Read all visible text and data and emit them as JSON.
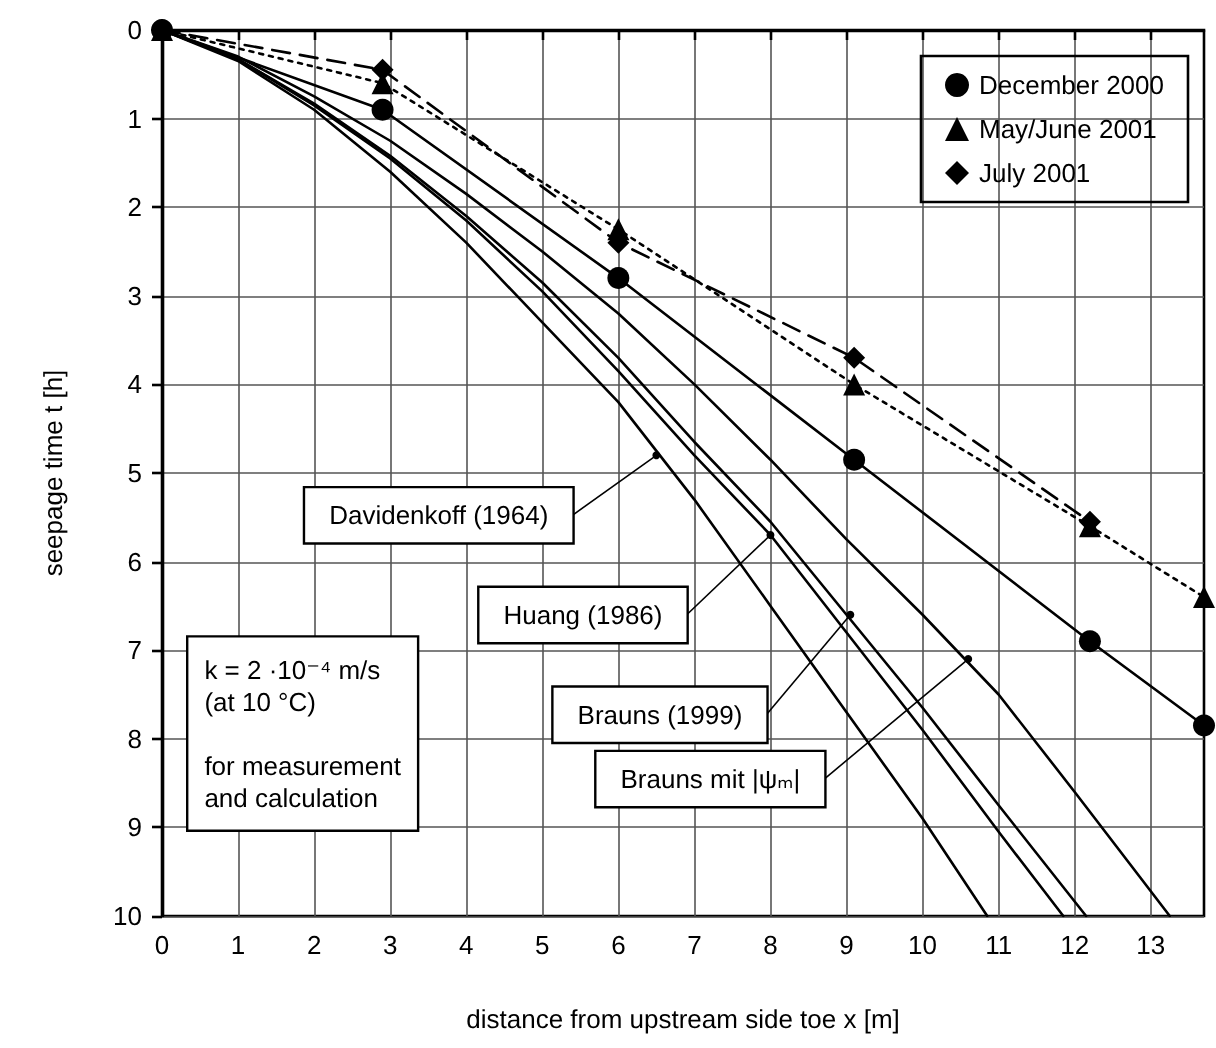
{
  "chart_data": {
    "type": "line",
    "xlabel": "distance from upstream side toe x [m]",
    "ylabel": "seepage time t [h]",
    "xlim": [
      0,
      13.7
    ],
    "ylim": [
      10,
      0
    ],
    "xticks": [
      0,
      1,
      2,
      3,
      4,
      5,
      6,
      7,
      8,
      9,
      10,
      11,
      12,
      13
    ],
    "yticks": [
      0,
      1,
      2,
      3,
      4,
      5,
      6,
      7,
      8,
      9,
      10
    ],
    "grid": true,
    "legend": "top right",
    "series": [
      {
        "name": "December 2000",
        "color": "#000000",
        "marker": "circle",
        "line_style": "solid",
        "x": [
          0,
          2.9,
          6.0,
          9.1,
          12.2,
          13.7
        ],
        "values": [
          0,
          0.9,
          2.8,
          4.85,
          6.9,
          7.85
        ]
      },
      {
        "name": "May/June 2001",
        "color": "#000000",
        "marker": "triangle",
        "line_style": "dotted",
        "x": [
          0,
          2.9,
          6.0,
          9.1,
          12.2,
          13.7
        ],
        "values": [
          0,
          0.6,
          2.25,
          4.0,
          5.6,
          6.4
        ]
      },
      {
        "name": "July 2001",
        "color": "#000000",
        "marker": "diamond",
        "line_style": "dashed",
        "x": [
          0,
          2.9,
          6.0,
          9.1,
          12.2
        ],
        "values": [
          0,
          0.45,
          2.4,
          3.7,
          5.55
        ]
      },
      {
        "color": "#000000",
        "marker": "none",
        "line_style": "solid",
        "x": [
          0,
          1,
          2,
          3,
          4,
          5,
          6,
          7,
          8,
          9,
          10,
          10.85
        ],
        "values": [
          0,
          0.35,
          0.9,
          1.6,
          2.4,
          3.3,
          4.2,
          5.3,
          6.5,
          7.7,
          8.9,
          10
        ]
      },
      {
        "color": "#000000",
        "marker": "none",
        "line_style": "solid",
        "x": [
          0,
          1,
          2,
          3,
          4,
          5,
          6,
          7,
          8,
          9,
          10,
          11,
          11.85
        ],
        "values": [
          0,
          0.33,
          0.85,
          1.45,
          2.15,
          2.95,
          3.85,
          4.8,
          5.7,
          6.8,
          7.9,
          9.05,
          10
        ]
      },
      {
        "color": "#000000",
        "marker": "none",
        "line_style": "solid",
        "x": [
          0,
          1,
          2,
          3,
          4,
          5,
          6,
          7,
          8,
          9,
          10,
          11,
          12.15
        ],
        "values": [
          0,
          0.33,
          0.83,
          1.42,
          2.1,
          2.85,
          3.7,
          4.65,
          5.55,
          6.6,
          7.65,
          8.75,
          10
        ]
      },
      {
        "color": "#000000",
        "marker": "none",
        "line_style": "solid",
        "x": [
          0,
          1,
          2,
          3,
          4,
          5,
          6,
          7,
          8,
          9,
          10,
          11,
          12,
          13.25
        ],
        "values": [
          0,
          0.3,
          0.75,
          1.25,
          1.85,
          2.5,
          3.2,
          4.0,
          4.85,
          5.75,
          6.6,
          7.5,
          8.6,
          10
        ]
      }
    ],
    "annotations": [
      {
        "text": "Davidenkoff (1964)",
        "x": 6.5,
        "y": 4.8
      },
      {
        "text": "Huang (1986)",
        "x": 8.0,
        "y": 5.7
      },
      {
        "text": "Brauns (1999)",
        "x": 9.05,
        "y": 6.6
      },
      {
        "text": "Brauns mit |ψₘ|",
        "x": 10.6,
        "y": 7.1
      },
      "k = 2 ·10⁻⁴ m/s\n(at 10 °C)\n\nfor measurement\nand calculation"
    ]
  }
}
